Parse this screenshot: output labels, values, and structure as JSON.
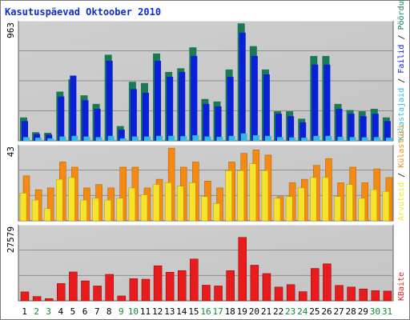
{
  "chart_data": {
    "type": "bar",
    "title": "Kasutuspäevad Oktoober 2010",
    "categories": [
      "1",
      "2",
      "3",
      "4",
      "5",
      "6",
      "7",
      "8",
      "9",
      "10",
      "11",
      "12",
      "13",
      "14",
      "15",
      "16",
      "17",
      "18",
      "19",
      "20",
      "21",
      "22",
      "23",
      "24",
      "25",
      "26",
      "27",
      "28",
      "29",
      "30",
      "31"
    ],
    "weekend_days": [
      "2",
      "3",
      "9",
      "10",
      "16",
      "17",
      "23",
      "24",
      "30",
      "31"
    ],
    "panels": [
      {
        "name": "hits",
        "ymax_label": "963",
        "ylim": [
          0,
          963
        ],
        "legend": [
          "Külastajaid",
          "Failid",
          "Pöördumisi"
        ],
        "series": [
          {
            "name": "Pöördumisi",
            "color": "#1a7a55",
            "values": [
              190,
              70,
              65,
              400,
              500,
              370,
              300,
              700,
              120,
              480,
              470,
              710,
              560,
              590,
              760,
              340,
              320,
              580,
              955,
              770,
              580,
              240,
              240,
              180,
              690,
              690,
              300,
              250,
              240,
              260,
              190
            ]
          },
          {
            "name": "Failid",
            "color": "#0a1fd8",
            "values": [
              160,
              55,
              50,
              360,
              530,
              330,
              260,
              650,
              90,
              420,
              390,
              650,
              520,
              560,
              690,
              300,
              280,
              520,
              880,
              690,
              540,
              220,
              200,
              150,
              620,
              620,
              260,
              220,
              200,
              220,
              160
            ]
          },
          {
            "name": "Külastajaid",
            "color": "#34b8e0",
            "values": [
              30,
              25,
              20,
              35,
              40,
              35,
              30,
              40,
              20,
              35,
              35,
              40,
              40,
              38,
              45,
              35,
              32,
              40,
              60,
              45,
              40,
              30,
              28,
              25,
              40,
              40,
              32,
              30,
              28,
              30,
              25
            ]
          }
        ]
      },
      {
        "name": "visits",
        "ymax_label": "43",
        "ylim": [
          0,
          43
        ],
        "legend": [
          "Arvuteid",
          "Külastusi"
        ],
        "series": [
          {
            "name": "Külastusi",
            "color": "#f58a12",
            "values": [
              26,
              18,
              19,
              34,
              31,
              19,
              21,
              19,
              31,
              31,
              19,
              24,
              42,
              31,
              34,
              23,
              19,
              34,
              39,
              41,
              38,
              14,
              22,
              24,
              32,
              36,
              22,
              31,
              22,
              30,
              25
            ]
          },
          {
            "name": "Arvuteid",
            "color": "#f7e42a",
            "values": [
              16,
              12,
              7,
              24,
              25,
              12,
              13,
              12,
              13,
              19,
              15,
              21,
              22,
              20,
              22,
              14,
              10,
              29,
              29,
              33,
              29,
              13,
              14,
              19,
              25,
              25,
              14,
              21,
              13,
              18,
              17
            ]
          }
        ]
      },
      {
        "name": "kbytes",
        "ymax_label": "27579",
        "ylim": [
          0,
          27579
        ],
        "legend": [
          "KBaite"
        ],
        "series": [
          {
            "name": "KBaite",
            "color": "#e81c1c",
            "values": [
              3300,
              1600,
              800,
              6400,
              10700,
              7400,
              5500,
              9800,
              1800,
              8200,
              8000,
              13000,
              10600,
              11200,
              15500,
              5800,
              5500,
              11200,
              23500,
              13200,
              10100,
              5100,
              6000,
              3400,
              12000,
              13700,
              5700,
              5100,
              4400,
              3800,
              3600
            ]
          }
        ]
      }
    ]
  }
}
